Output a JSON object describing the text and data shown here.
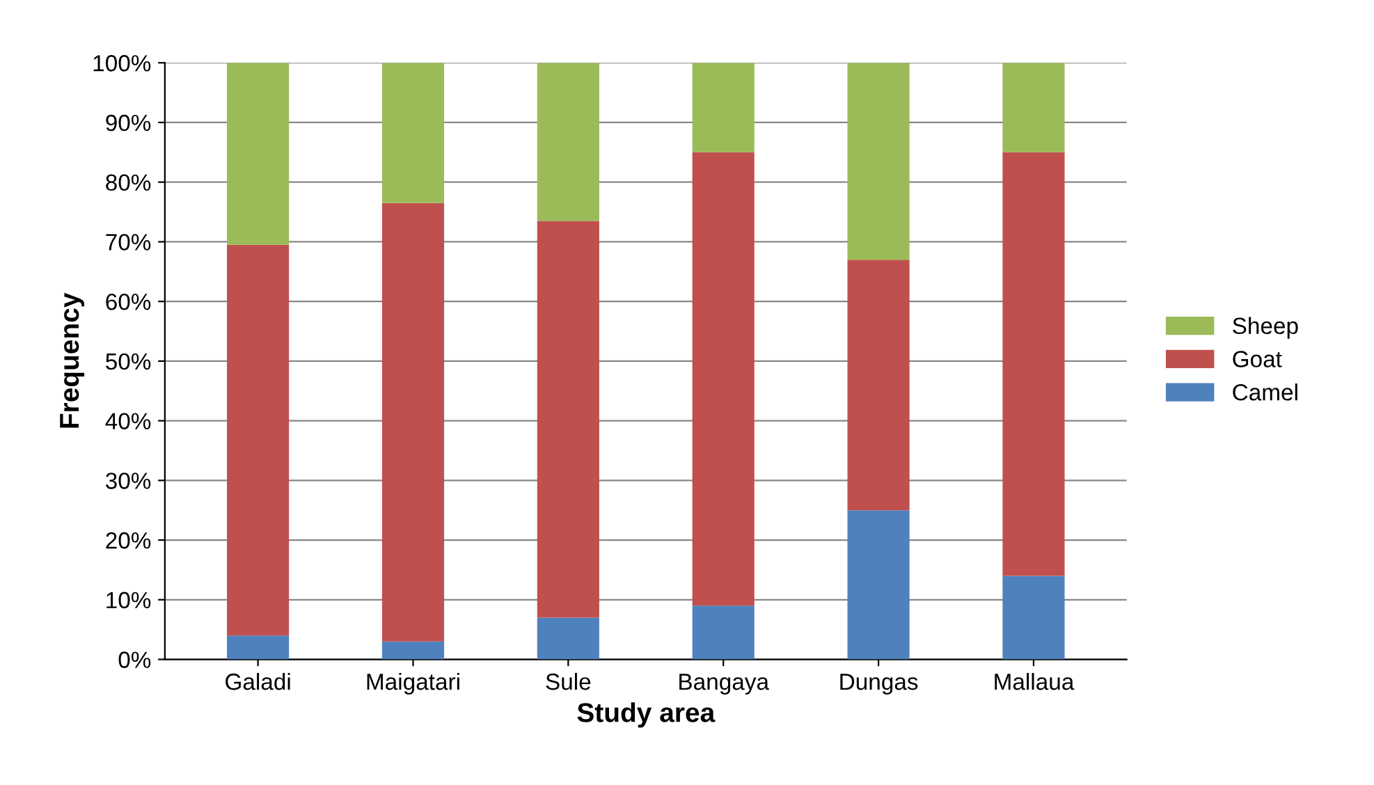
{
  "chart_data": {
    "type": "bar",
    "stacked": true,
    "xlabel": "Study area",
    "ylabel": "Frequency",
    "categories": [
      "Galadi",
      "Maigatari",
      "Sule",
      "Bangaya",
      "Dungas",
      "Mallaua"
    ],
    "series": [
      {
        "name": "Camel",
        "color": "#4f81bd",
        "values": [
          4,
          3,
          7,
          9,
          25,
          14
        ]
      },
      {
        "name": "Goat",
        "color": "#c0504d",
        "values": [
          65.5,
          73.5,
          66.5,
          76,
          42,
          71
        ]
      },
      {
        "name": "Sheep",
        "color": "#9bbb59",
        "values": [
          30.5,
          23.5,
          26.5,
          15,
          33,
          15
        ]
      }
    ],
    "ylim": [
      0,
      100
    ],
    "yticks": [
      {
        "value": 0,
        "label": "0%"
      },
      {
        "value": 10,
        "label": "10%"
      },
      {
        "value": 20,
        "label": "20%"
      },
      {
        "value": 30,
        "label": "30%"
      },
      {
        "value": 40,
        "label": "40%"
      },
      {
        "value": 50,
        "label": "50%"
      },
      {
        "value": 60,
        "label": "60%"
      },
      {
        "value": 70,
        "label": "70%"
      },
      {
        "value": 80,
        "label": "80%"
      },
      {
        "value": 90,
        "label": "90%"
      },
      {
        "value": 100,
        "label": "100%"
      }
    ],
    "grid": "y",
    "legend": "right"
  }
}
